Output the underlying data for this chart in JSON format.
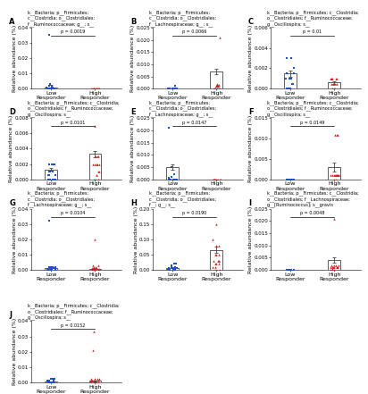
{
  "panels": [
    {
      "label": "A",
      "title": "k__Bacteria; p__Firmicutes;\nc__Clostridia; o__Clostridiales;\nf__Ruminococcaceae; g__; s__",
      "pvalue": "p = 0.0019",
      "ylim": [
        0,
        0.04
      ],
      "yticks": [
        0.0,
        0.01,
        0.02,
        0.03,
        0.04
      ],
      "yticklabels": [
        "0.00",
        "0.01",
        "0.02",
        "0.03",
        "0.04"
      ],
      "low_dots": [
        0.0,
        0.0,
        0.0,
        0.0,
        0.0,
        0.0,
        0.0,
        0.0,
        0.0,
        5e-05,
        5e-05,
        0.0002,
        0.0004,
        0.0004,
        0.0008,
        0.0008,
        0.001,
        0.0015,
        0.002,
        0.003,
        0.035
      ],
      "high_dots": [
        0.0,
        0.0,
        0.0,
        0.0,
        0.0,
        0.0,
        0.0,
        0.0,
        0.0,
        0.0,
        0.0,
        0.0,
        0.0,
        0.0,
        0.0,
        0.0
      ],
      "low_mean": 0.001,
      "low_sem": 0.0015,
      "high_mean": 0.0,
      "high_sem": 0.0
    },
    {
      "label": "B",
      "title": "k__Bacteria; p__Firmicutes;\nc__Clostridia; o__Clostridiales;\nf__Lachnospiraceae; g__; s__",
      "pvalue": "p = 0.0066",
      "ylim": [
        0,
        0.025
      ],
      "yticks": [
        0.0,
        0.005,
        0.01,
        0.015,
        0.02,
        0.025
      ],
      "yticklabels": [
        "0.000",
        "0.005",
        "0.010",
        "0.015",
        "0.020",
        "0.025"
      ],
      "low_dots": [
        0.0,
        0.0,
        0.0,
        0.0,
        0.0,
        0.0,
        0.0,
        0.0,
        0.0,
        0.0,
        0.0,
        0.0,
        0.0,
        0.0001,
        0.001
      ],
      "high_dots": [
        0.0,
        0.0,
        0.0,
        0.0,
        0.0,
        0.0,
        0.0,
        0.0005,
        0.001,
        0.001,
        0.001,
        0.001,
        0.001,
        0.001,
        0.0015,
        0.0015,
        0.002,
        0.021
      ],
      "low_mean": 0.0001,
      "low_sem": 0.0001,
      "high_mean": 0.007,
      "high_sem": 0.001
    },
    {
      "label": "C",
      "title": "k__Bacteria; p__Firmicutes; c__Clostridia;\no__Clostridiales; f__Ruminococcaceae;\ng__Oscillospira; s__",
      "pvalue": "p = 0.01",
      "ylim": [
        0,
        0.006
      ],
      "yticks": [
        0.0,
        0.002,
        0.004,
        0.006
      ],
      "yticklabels": [
        "0.000",
        "0.002",
        "0.004",
        "0.006"
      ],
      "low_dots": [
        0.0,
        0.0,
        0.0,
        0.0,
        0.0005,
        0.0005,
        0.001,
        0.001,
        0.001,
        0.001,
        0.0015,
        0.0015,
        0.002,
        0.002,
        0.003,
        0.003
      ],
      "high_dots": [
        0.0,
        0.0,
        0.0,
        0.0,
        0.0,
        0.0005,
        0.0005,
        0.0005,
        0.0005,
        0.0005,
        0.001,
        0.001,
        0.001,
        0.001,
        0.001,
        0.001
      ],
      "low_mean": 0.0015,
      "low_sem": 0.0003,
      "high_mean": 0.0006,
      "high_sem": 0.0001
    },
    {
      "label": "D",
      "title": "k__Bacteria; p__Firmicutes; c__Clostridia;\no__Clostridiales; f__Ruminococcaceae;\ng__Oscillospira; s__",
      "pvalue": "p = 0.0101",
      "ylim": [
        0,
        0.008
      ],
      "yticks": [
        0.0,
        0.002,
        0.004,
        0.006,
        0.008
      ],
      "yticklabels": [
        "0.000",
        "0.002",
        "0.004",
        "0.006",
        "0.008"
      ],
      "low_dots": [
        0.0,
        0.0,
        0.0,
        0.0,
        0.0,
        0.0,
        0.0005,
        0.0005,
        0.0005,
        0.001,
        0.001,
        0.001,
        0.001,
        0.002,
        0.002,
        0.002,
        0.002,
        0.002
      ],
      "high_dots": [
        0.0,
        0.0,
        0.0,
        0.0,
        0.0005,
        0.0005,
        0.001,
        0.001,
        0.002,
        0.002,
        0.002,
        0.002,
        0.002,
        0.002,
        0.003,
        0.003,
        0.003,
        0.007
      ],
      "low_mean": 0.0013,
      "low_sem": 0.0002,
      "high_mean": 0.0033,
      "high_sem": 0.0004
    },
    {
      "label": "E",
      "title": "k__Bacteria; p__Firmicutes;\nc__Clostridia; o__Clostridiales;\nf__Lachnospiraceae; g__; s__",
      "pvalue": "p = 0.0147",
      "ylim": [
        0,
        0.025
      ],
      "yticks": [
        0.0,
        0.005,
        0.01,
        0.015,
        0.02,
        0.025
      ],
      "yticklabels": [
        "0.000",
        "0.005",
        "0.010",
        "0.015",
        "0.020",
        "0.025"
      ],
      "low_dots": [
        0.0,
        0.0,
        0.0,
        0.0,
        0.0,
        0.0,
        0.0,
        0.0,
        0.0,
        0.0,
        0.0005,
        0.001,
        0.002,
        0.005,
        0.021
      ],
      "high_dots": [
        0.0,
        0.0,
        0.0,
        0.0,
        0.0,
        0.0,
        0.0,
        0.0,
        0.0,
        0.0,
        0.0,
        0.0,
        0.0,
        0.0,
        0.0,
        0.0
      ],
      "low_mean": 0.005,
      "low_sem": 0.001,
      "high_mean": 0.0,
      "high_sem": 0.0
    },
    {
      "label": "F",
      "title": "k__Bacteria; p__Firmicutes; c__Clostridia;\no__Clostridiales; f__Ruminococcaceae;\ng__Oscillospira; s__",
      "pvalue": "p = 0.0149",
      "ylim": [
        0,
        0.015
      ],
      "yticks": [
        0.0,
        0.005,
        0.01,
        0.015
      ],
      "yticklabels": [
        "0.000",
        "0.005",
        "0.010",
        "0.015"
      ],
      "low_dots": [
        0.0,
        0.0,
        0.0,
        0.0,
        0.0,
        0.0,
        0.0,
        0.0,
        0.0,
        0.0,
        0.0,
        0.0,
        0.0,
        0.0,
        0.0,
        0.0,
        0.0
      ],
      "high_dots": [
        0.0,
        0.0,
        0.001,
        0.001,
        0.001,
        0.001,
        0.001,
        0.001,
        0.001,
        0.001,
        0.001,
        0.001,
        0.001,
        0.001,
        0.011,
        0.011,
        0.011
      ],
      "low_mean": 0.0,
      "low_sem": 0.0,
      "high_mean": 0.003,
      "high_sem": 0.001
    },
    {
      "label": "G",
      "title": "k__Bacteria; p__Firmicutes;\nc__Clostridia; o__Clostridiales;\nf__Lachnospiraceae; g__; s__",
      "pvalue": "p = 0.0104",
      "ylim": [
        0,
        0.04
      ],
      "yticks": [
        0.0,
        0.01,
        0.02,
        0.03,
        0.04
      ],
      "yticklabels": [
        "0.00",
        "0.01",
        "0.02",
        "0.03",
        "0.04"
      ],
      "low_dots": [
        0.0,
        0.0,
        0.0,
        0.0,
        0.0,
        0.0,
        0.0,
        0.0,
        0.0005,
        0.0005,
        0.001,
        0.001,
        0.001,
        0.001,
        0.001,
        0.002,
        0.002,
        0.002,
        0.002,
        0.032
      ],
      "high_dots": [
        0.0,
        0.0,
        0.0,
        0.0,
        0.0,
        0.0,
        0.0,
        0.0,
        0.0005,
        0.001,
        0.001,
        0.001,
        0.002,
        0.002,
        0.003,
        0.003,
        0.02
      ],
      "low_mean": 0.0011,
      "low_sem": 0.0015,
      "high_mean": 0.0005,
      "high_sem": 0.001
    },
    {
      "label": "H",
      "title": "k__Bacteria; p__Firmicutes;\nc__Clostridia; o__Clostridiales;\nf__; g__; s__",
      "pvalue": "p = 0.0190",
      "ylim": [
        0,
        0.2
      ],
      "yticks": [
        0.0,
        0.05,
        0.1,
        0.15,
        0.2
      ],
      "yticklabels": [
        "0.00",
        "0.05",
        "0.10",
        "0.15",
        "0.20"
      ],
      "low_dots": [
        0.0,
        0.0,
        0.0,
        0.0,
        0.0,
        0.0,
        0.005,
        0.005,
        0.005,
        0.005,
        0.005,
        0.005,
        0.01,
        0.01,
        0.01,
        0.015,
        0.02,
        0.02
      ],
      "high_dots": [
        0.0,
        0.0,
        0.01,
        0.01,
        0.02,
        0.02,
        0.02,
        0.03,
        0.03,
        0.03,
        0.03,
        0.05,
        0.05,
        0.05,
        0.08,
        0.08,
        0.1,
        0.15
      ],
      "low_mean": 0.007,
      "low_sem": 0.002,
      "high_mean": 0.065,
      "high_sem": 0.01
    },
    {
      "label": "I",
      "title": "k__Bacteria; p__Firmicutes; c__Clostridia;\no__Clostridiales; f__Lachnospiraceae;\ng__[Ruminococcus]; s__gravis",
      "pvalue": "p = 0.0048",
      "ylim": [
        0,
        0.025
      ],
      "yticks": [
        0.0,
        0.005,
        0.01,
        0.015,
        0.02,
        0.025
      ],
      "yticklabels": [
        "0.000",
        "0.005",
        "0.010",
        "0.015",
        "0.020",
        "0.025"
      ],
      "low_dots": [
        0.0,
        0.0,
        0.0,
        0.0,
        0.0,
        0.0,
        0.0,
        0.0,
        0.0,
        0.0,
        0.0,
        0.0,
        0.0,
        0.0,
        0.0,
        0.0,
        0.0
      ],
      "high_dots": [
        0.0,
        0.0,
        0.0005,
        0.001,
        0.001,
        0.001,
        0.001,
        0.001,
        0.001,
        0.001,
        0.001,
        0.001,
        0.002,
        0.002,
        0.002,
        0.002,
        0.021
      ],
      "low_mean": 0.0,
      "low_sem": 0.0,
      "high_mean": 0.004,
      "high_sem": 0.0012
    },
    {
      "label": "J",
      "title": "k__Bacteria; p__Firmicutes; c__Clostridia;\no__Clostridiales; f__Ruminococcaceae;\ng__Oscillospira; s__",
      "pvalue": "p = 0.0152",
      "ylim": [
        0,
        0.04
      ],
      "yticks": [
        0.0,
        0.01,
        0.02,
        0.03,
        0.04
      ],
      "yticklabels": [
        "0.00",
        "0.01",
        "0.02",
        "0.03",
        "0.04"
      ],
      "low_dots": [
        0.0,
        0.0,
        0.0,
        0.0,
        0.0,
        0.0,
        0.0,
        0.0,
        0.0,
        0.0,
        0.0005,
        0.001,
        0.001,
        0.001,
        0.002,
        0.002,
        0.002
      ],
      "high_dots": [
        0.0,
        0.0,
        0.0,
        0.0,
        0.001,
        0.001,
        0.001,
        0.001,
        0.001,
        0.001,
        0.001,
        0.001,
        0.001,
        0.001,
        0.002,
        0.002,
        0.002,
        0.002,
        0.021,
        0.033
      ],
      "low_mean": 0.0005,
      "low_sem": 0.0001,
      "high_mean": 0.001,
      "high_sem": 0.0003
    }
  ],
  "low_color": "#1F4FCC",
  "high_color": "#CC1F1F",
  "bar_edge_color": "#444444",
  "dot_size": 3,
  "xlabel_low": "Low\nResponder",
  "xlabel_high": "High\nResponder",
  "ylabel": "Relative abundance (%)",
  "font_size": 4.5,
  "title_font_size": 3.6,
  "label_font_size": 6.0,
  "tick_font_size": 4.0,
  "pval_font_size": 3.5
}
